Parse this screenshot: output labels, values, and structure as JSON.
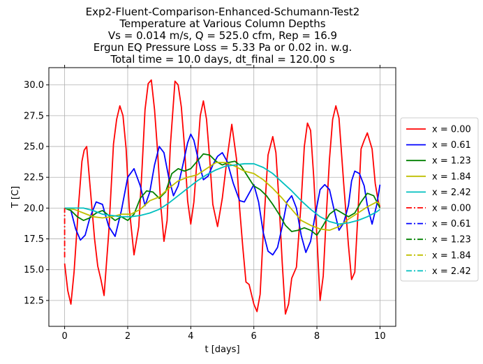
{
  "chart_data": {
    "type": "line",
    "title_lines": [
      "Exp2-Fluent-Comparison-Enhanced-Schumann-Test2",
      "Temperature at Various Column Depths",
      "Vs = 0.014 m/s, Q = 525.0 cfm, Rep = 16.9",
      "Ergun EQ Pressure Loss = 5.33 Pa or 0.02 in. w.g.",
      "Total time = 10.0 days, dt_final = 120.00 s"
    ],
    "xlabel": "t [days]",
    "ylabel": "T [C]",
    "xlim": [
      -0.5,
      10.5
    ],
    "ylim": [
      10.4,
      31.4
    ],
    "xticks": [
      0,
      2,
      4,
      6,
      8,
      10
    ],
    "xtick_labels": [
      "0",
      "2",
      "4",
      "6",
      "8",
      "10"
    ],
    "yticks": [
      12.5,
      15.0,
      17.5,
      20.0,
      22.5,
      25.0,
      27.5,
      30.0
    ],
    "ytick_labels": [
      "12.5",
      "15.0",
      "17.5",
      "20.0",
      "22.5",
      "25.0",
      "27.5",
      "30.0"
    ],
    "grid": true,
    "legend_position": "right-outside",
    "series": [
      {
        "name": "x = 0.00",
        "color": "#ff0000",
        "dash": "solid",
        "x": [
          0,
          0.1,
          0.2,
          0.3,
          0.45,
          0.55,
          0.62,
          0.7,
          0.8,
          0.95,
          1.05,
          1.15,
          1.25,
          1.4,
          1.55,
          1.65,
          1.75,
          1.85,
          1.95,
          2.05,
          2.2,
          2.35,
          2.45,
          2.55,
          2.65,
          2.75,
          2.85,
          2.95,
          3.05,
          3.15,
          3.25,
          3.35,
          3.5,
          3.6,
          3.7,
          3.8,
          3.9,
          4.0,
          4.1,
          4.2,
          4.3,
          4.4,
          4.5,
          4.6,
          4.7,
          4.85,
          5.0,
          5.15,
          5.3,
          5.45,
          5.55,
          5.65,
          5.75,
          5.85,
          6.0,
          6.1,
          6.2,
          6.3,
          6.45,
          6.6,
          6.7,
          6.8,
          6.9,
          7.0,
          7.1,
          7.2,
          7.35,
          7.5,
          7.6,
          7.7,
          7.8,
          7.9,
          8.0,
          8.1,
          8.2,
          8.3,
          8.4,
          8.5,
          8.6,
          8.7,
          8.85,
          9.0,
          9.1,
          9.2,
          9.3,
          9.4,
          9.5,
          9.6,
          9.75,
          9.85,
          9.95,
          10.0
        ],
        "y": [
          15.5,
          13.3,
          12.2,
          14.8,
          20.5,
          23.8,
          24.7,
          25.0,
          22.0,
          17.5,
          15.3,
          14.2,
          12.9,
          18.0,
          25.2,
          27.2,
          28.3,
          27.5,
          24.8,
          20.0,
          16.2,
          18.5,
          23.0,
          28.0,
          30.1,
          30.4,
          28.0,
          24.5,
          20.2,
          17.3,
          19.0,
          25.0,
          30.3,
          30.0,
          28.2,
          25.0,
          20.6,
          18.7,
          20.5,
          24.0,
          27.5,
          28.7,
          27.2,
          24.0,
          20.3,
          18.5,
          20.8,
          24.0,
          26.8,
          24.0,
          20.0,
          16.8,
          14.0,
          13.8,
          12.2,
          11.6,
          13.0,
          18.0,
          24.3,
          25.8,
          24.5,
          20.5,
          15.6,
          11.4,
          12.2,
          14.3,
          15.2,
          20.5,
          25.0,
          26.9,
          26.3,
          22.5,
          17.7,
          12.5,
          14.5,
          19.5,
          24.0,
          27.2,
          28.3,
          27.3,
          22.0,
          17.0,
          14.2,
          14.8,
          19.5,
          24.8,
          25.5,
          26.1,
          24.8,
          22.0,
          20.5,
          20.1
        ]
      },
      {
        "name": "x = 0.61",
        "color": "#0000ff",
        "dash": "solid",
        "x": [
          0,
          0.2,
          0.35,
          0.5,
          0.65,
          0.8,
          1.0,
          1.2,
          1.4,
          1.6,
          1.8,
          2.0,
          2.2,
          2.4,
          2.55,
          2.7,
          2.85,
          3.0,
          3.15,
          3.3,
          3.45,
          3.6,
          3.75,
          3.9,
          4.0,
          4.1,
          4.25,
          4.4,
          4.55,
          4.7,
          4.85,
          5.0,
          5.15,
          5.35,
          5.55,
          5.7,
          5.85,
          6.0,
          6.15,
          6.3,
          6.45,
          6.6,
          6.75,
          6.9,
          7.05,
          7.2,
          7.35,
          7.5,
          7.65,
          7.8,
          7.95,
          8.1,
          8.25,
          8.4,
          8.55,
          8.7,
          8.85,
          9.0,
          9.1,
          9.2,
          9.35,
          9.5,
          9.6,
          9.75,
          9.9,
          10.0
        ],
        "y": [
          20.0,
          19.8,
          18.3,
          17.4,
          17.8,
          19.2,
          20.5,
          20.3,
          18.5,
          17.7,
          19.8,
          22.5,
          23.2,
          21.8,
          20.2,
          21.3,
          23.5,
          25.0,
          24.5,
          22.5,
          21.0,
          21.8,
          23.5,
          25.3,
          26.0,
          25.5,
          23.8,
          22.3,
          22.6,
          23.5,
          24.2,
          24.5,
          23.8,
          22.0,
          20.6,
          20.5,
          21.2,
          21.9,
          20.5,
          18.0,
          16.5,
          16.2,
          16.8,
          18.5,
          20.5,
          21.0,
          20.0,
          17.8,
          16.4,
          17.3,
          19.5,
          21.5,
          21.9,
          21.5,
          19.8,
          18.2,
          18.8,
          20.2,
          22.2,
          23.0,
          22.8,
          21.8,
          20.2,
          18.7,
          20.3,
          21.9
        ]
      },
      {
        "name": "x = 1.23",
        "color": "#008000",
        "dash": "solid",
        "x": [
          0,
          0.2,
          0.4,
          0.6,
          0.8,
          1.0,
          1.2,
          1.4,
          1.6,
          1.8,
          2.0,
          2.2,
          2.4,
          2.6,
          2.8,
          3.0,
          3.2,
          3.4,
          3.6,
          3.8,
          4.0,
          4.2,
          4.4,
          4.6,
          4.8,
          5.0,
          5.2,
          5.4,
          5.6,
          5.8,
          6.0,
          6.2,
          6.4,
          6.6,
          6.8,
          7.0,
          7.2,
          7.4,
          7.6,
          7.8,
          8.0,
          8.2,
          8.4,
          8.6,
          8.8,
          9.0,
          9.2,
          9.4,
          9.6,
          9.8,
          10.0
        ],
        "y": [
          20.0,
          19.8,
          19.3,
          19.0,
          19.2,
          19.6,
          19.8,
          19.4,
          19.0,
          19.3,
          19.0,
          19.5,
          20.8,
          21.4,
          21.3,
          20.8,
          21.3,
          22.8,
          23.2,
          23.0,
          23.2,
          23.8,
          24.4,
          24.3,
          23.8,
          23.5,
          23.7,
          23.8,
          23.4,
          22.6,
          21.8,
          21.5,
          21.0,
          20.3,
          19.5,
          18.6,
          18.1,
          18.2,
          18.4,
          18.2,
          17.8,
          18.6,
          19.5,
          19.9,
          19.6,
          19.3,
          19.6,
          20.5,
          21.2,
          21.0,
          20.0
        ]
      },
      {
        "name": "x = 1.84",
        "color": "#bfbf00",
        "dash": "solid",
        "x": [
          0,
          0.3,
          0.6,
          0.9,
          1.2,
          1.5,
          1.8,
          2.1,
          2.4,
          2.7,
          3.0,
          3.3,
          3.6,
          3.9,
          4.2,
          4.5,
          4.8,
          5.1,
          5.4,
          5.7,
          6.0,
          6.3,
          6.6,
          6.9,
          7.2,
          7.5,
          7.8,
          8.1,
          8.4,
          8.7,
          9.0,
          9.3,
          9.6,
          9.9,
          10.0
        ],
        "y": [
          20.0,
          19.9,
          19.6,
          19.3,
          19.2,
          19.3,
          19.5,
          19.5,
          19.9,
          20.6,
          20.9,
          21.6,
          22.2,
          22.5,
          22.7,
          23.2,
          23.7,
          23.7,
          23.4,
          23.0,
          22.8,
          22.3,
          21.6,
          20.8,
          19.9,
          19.0,
          18.6,
          18.3,
          18.2,
          18.5,
          19.1,
          19.6,
          20.1,
          20.5,
          20.3
        ]
      },
      {
        "name": "x = 2.42",
        "color": "#00bfbf",
        "dash": "solid",
        "x": [
          0,
          0.3,
          0.6,
          0.9,
          1.2,
          1.5,
          1.8,
          2.1,
          2.4,
          2.7,
          3.0,
          3.3,
          3.6,
          3.9,
          4.2,
          4.5,
          4.8,
          5.1,
          5.4,
          5.7,
          6.0,
          6.3,
          6.6,
          6.9,
          7.2,
          7.5,
          7.8,
          8.1,
          8.4,
          8.7,
          9.0,
          9.3,
          9.6,
          9.9,
          10.0
        ],
        "y": [
          20.0,
          20.0,
          20.0,
          19.8,
          19.5,
          19.4,
          19.3,
          19.3,
          19.4,
          19.6,
          19.9,
          20.4,
          21.0,
          21.6,
          22.2,
          22.7,
          23.1,
          23.4,
          23.5,
          23.6,
          23.6,
          23.3,
          22.8,
          22.1,
          21.4,
          20.6,
          19.9,
          19.3,
          18.9,
          18.7,
          18.8,
          19.0,
          19.3,
          19.7,
          19.9
        ]
      },
      {
        "name": "x = 0.00",
        "color": "#ff0000",
        "dash": "dashdot",
        "x": [
          0,
          0,
          0
        ],
        "y": [
          16.0,
          18.2,
          20.0
        ]
      },
      {
        "name": "x = 0.61",
        "color": "#0000ff",
        "dash": "dashdot",
        "x": [],
        "y": []
      },
      {
        "name": "x = 1.23",
        "color": "#008000",
        "dash": "dashdot",
        "x": [],
        "y": []
      },
      {
        "name": "x = 1.84",
        "color": "#bfbf00",
        "dash": "dashdot",
        "x": [],
        "y": []
      },
      {
        "name": "x = 2.42",
        "color": "#00bfbf",
        "dash": "dashdot",
        "x": [],
        "y": []
      }
    ]
  }
}
